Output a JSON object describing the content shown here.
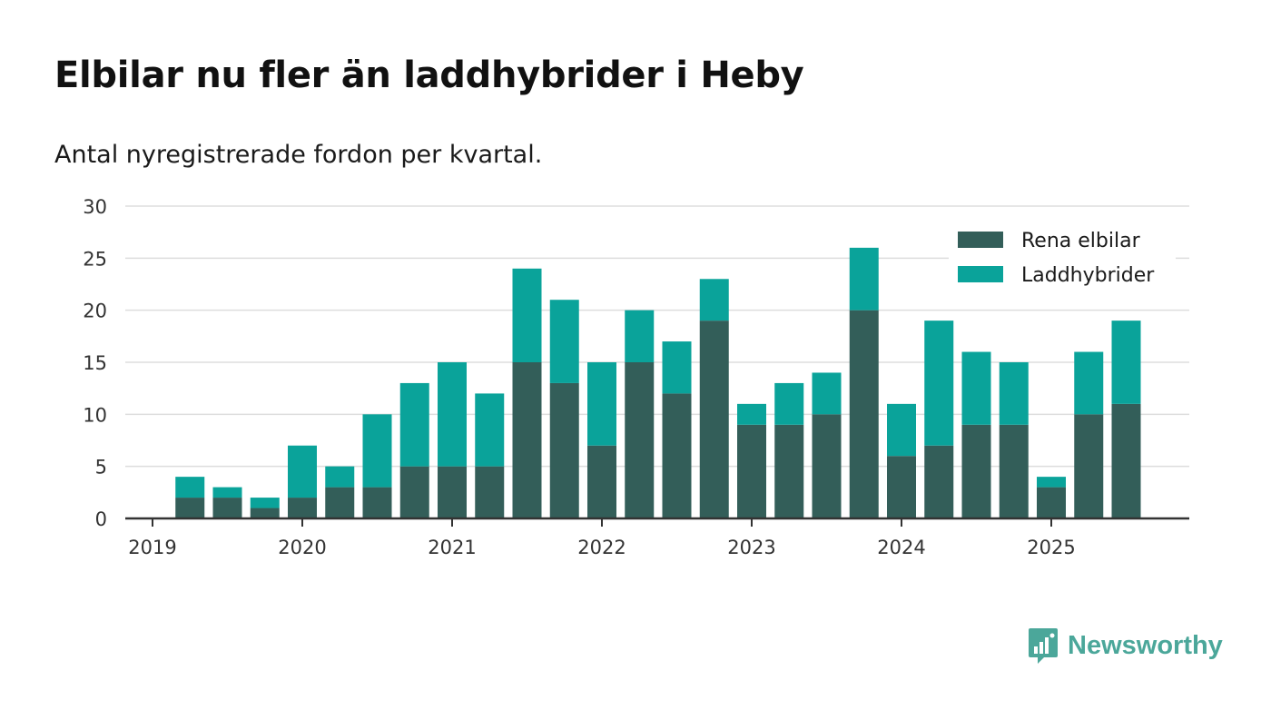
{
  "title": "Elbilar nu fler än laddhybrider i Heby",
  "subtitle": "Antal nyregistrerade fordon per kvartal.",
  "brand": {
    "name": "Newsworthy",
    "color": "#4ba79a"
  },
  "colors": {
    "elbilar": "#335e59",
    "laddhybrider": "#0aa39a",
    "grid": "#dddddd",
    "axis": "#333333"
  },
  "chart_data": {
    "type": "bar",
    "stacked": true,
    "title": "Elbilar nu fler än laddhybrider i Heby",
    "subtitle": "Antal nyregistrerade fordon per kvartal.",
    "xlabel": "",
    "ylabel": "",
    "ylim": [
      0,
      30
    ],
    "yticks": [
      0,
      5,
      10,
      15,
      20,
      25,
      30
    ],
    "xticks": [
      "2019",
      "2020",
      "2021",
      "2022",
      "2023",
      "2024",
      "2025"
    ],
    "legend_position": "top-right",
    "categories": [
      "2019 Q1",
      "2019 Q2",
      "2019 Q3",
      "2019 Q4",
      "2020 Q1",
      "2020 Q2",
      "2020 Q3",
      "2020 Q4",
      "2021 Q1",
      "2021 Q2",
      "2021 Q3",
      "2021 Q4",
      "2022 Q1",
      "2022 Q2",
      "2022 Q3",
      "2022 Q4",
      "2023 Q1",
      "2023 Q2",
      "2023 Q3",
      "2023 Q4",
      "2024 Q1",
      "2024 Q2",
      "2024 Q3",
      "2024 Q4",
      "2025 Q1",
      "2025 Q2",
      "2025 Q3"
    ],
    "series": [
      {
        "name": "Rena elbilar",
        "values": [
          0,
          2,
          2,
          1,
          2,
          3,
          3,
          5,
          5,
          5,
          15,
          13,
          7,
          15,
          12,
          19,
          9,
          9,
          10,
          20,
          6,
          7,
          9,
          9,
          3,
          10,
          11
        ]
      },
      {
        "name": "Laddhybrider",
        "values": [
          0,
          2,
          1,
          1,
          5,
          2,
          7,
          8,
          10,
          7,
          9,
          8,
          8,
          5,
          5,
          4,
          2,
          4,
          4,
          6,
          5,
          12,
          7,
          6,
          1,
          6,
          8
        ]
      }
    ]
  }
}
